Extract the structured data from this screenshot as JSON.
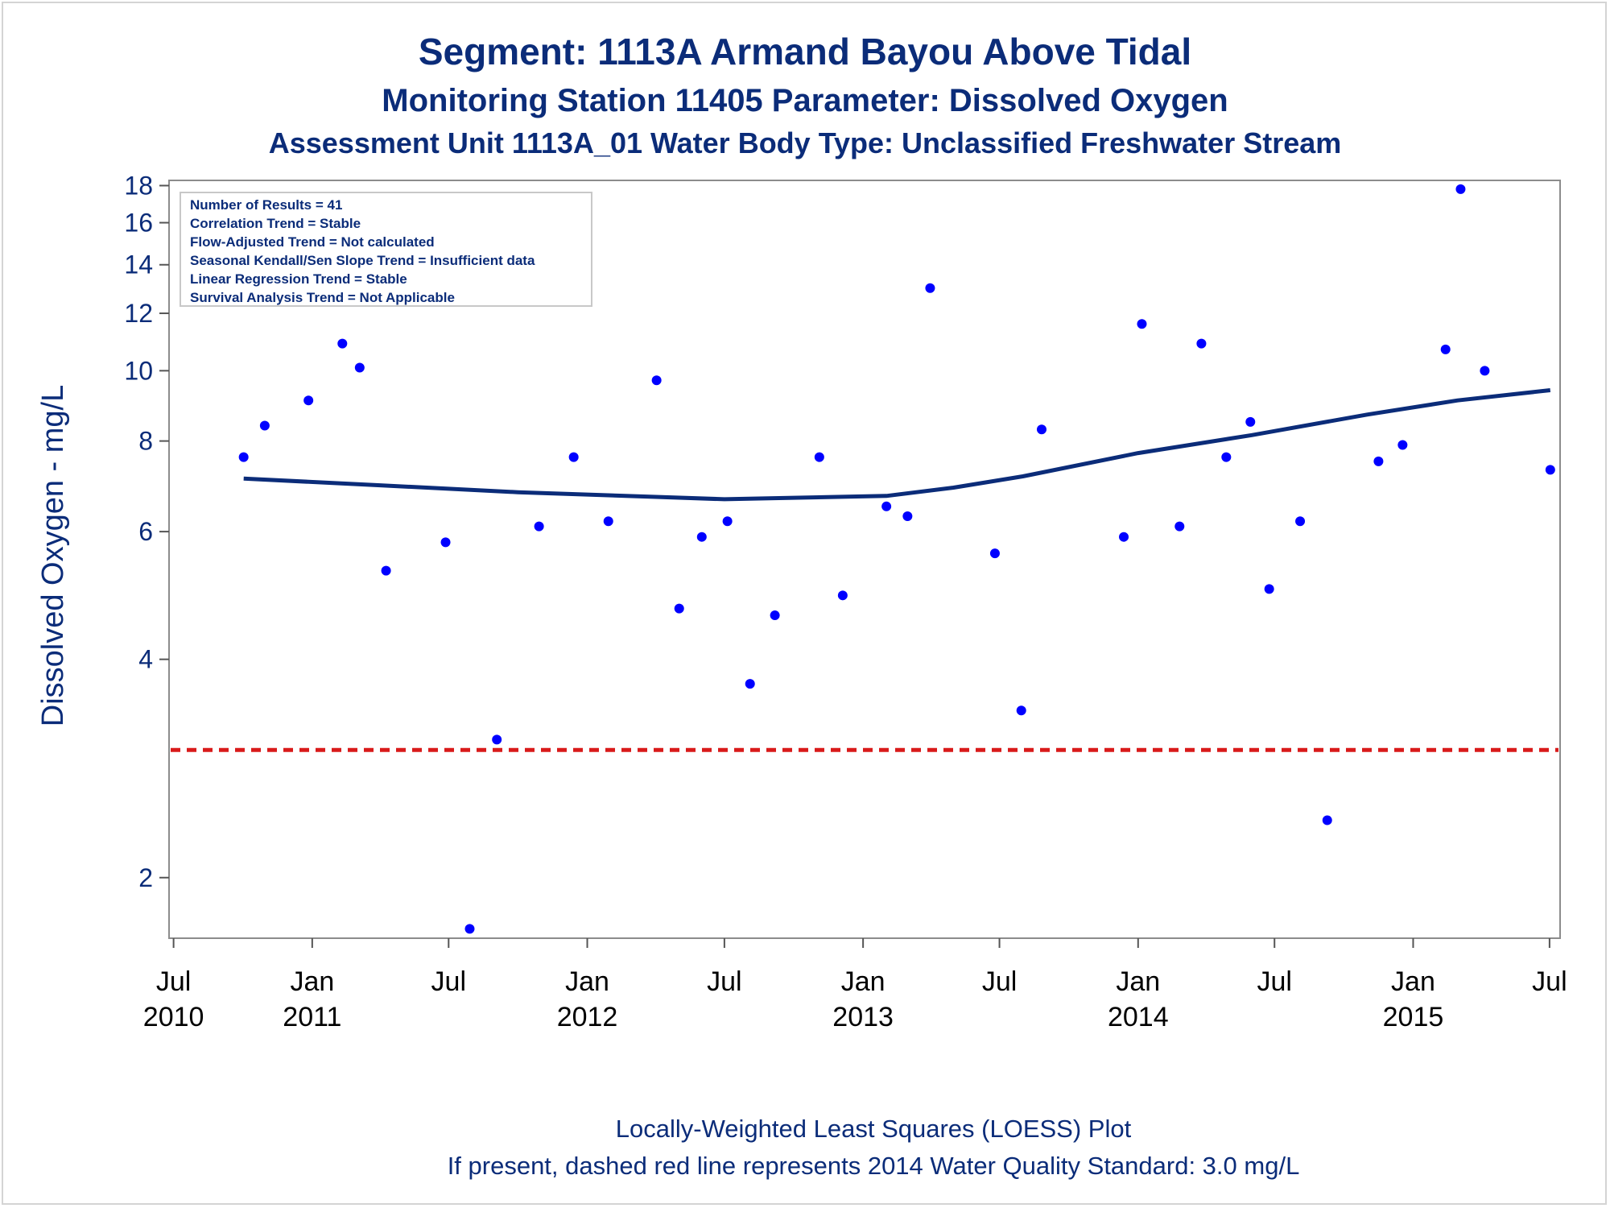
{
  "chart_data": {
    "type": "scatter",
    "title": "Segment: 1113A  Armand Bayou Above Tidal",
    "subtitle": "Monitoring Station 11405 Parameter: Dissolved Oxygen",
    "subtitle2": "Assessment Unit 1113A_01   Water Body Type: Unclassified Freshwater Stream",
    "ylabel": "Dissolved Oxygen - mg/L",
    "yscale": "log",
    "ylim": [
      1.65,
      18.3
    ],
    "xlim": [
      "2010-06-25",
      "2015-07-15"
    ],
    "yticks": [
      2,
      4,
      6,
      8,
      10,
      12,
      14,
      16,
      18
    ],
    "xticks": [
      {
        "date": "2010-07-01",
        "line1": "Jul",
        "line2": "2010"
      },
      {
        "date": "2011-01-01",
        "line1": "Jan",
        "line2": "2011"
      },
      {
        "date": "2011-07-01",
        "line1": "Jul",
        "line2": ""
      },
      {
        "date": "2012-01-01",
        "line1": "Jan",
        "line2": "2012"
      },
      {
        "date": "2012-07-01",
        "line1": "Jul",
        "line2": ""
      },
      {
        "date": "2013-01-01",
        "line1": "Jan",
        "line2": "2013"
      },
      {
        "date": "2013-07-01",
        "line1": "Jul",
        "line2": ""
      },
      {
        "date": "2014-01-01",
        "line1": "Jan",
        "line2": "2014"
      },
      {
        "date": "2014-07-01",
        "line1": "Jul",
        "line2": ""
      },
      {
        "date": "2015-01-01",
        "line1": "Jan",
        "line2": "2015"
      },
      {
        "date": "2015-07-01",
        "line1": "Jul",
        "line2": ""
      }
    ],
    "points": [
      {
        "x": "2010-10-02",
        "y": 7.6
      },
      {
        "x": "2010-10-30",
        "y": 8.4
      },
      {
        "x": "2010-12-27",
        "y": 9.1
      },
      {
        "x": "2011-02-10",
        "y": 10.9
      },
      {
        "x": "2011-03-05",
        "y": 10.1
      },
      {
        "x": "2011-04-09",
        "y": 5.3
      },
      {
        "x": "2011-06-27",
        "y": 5.8
      },
      {
        "x": "2011-07-29",
        "y": 1.7
      },
      {
        "x": "2011-09-03",
        "y": 3.1
      },
      {
        "x": "2011-10-29",
        "y": 6.1
      },
      {
        "x": "2011-12-14",
        "y": 7.6
      },
      {
        "x": "2012-01-29",
        "y": 6.2
      },
      {
        "x": "2012-04-02",
        "y": 9.7
      },
      {
        "x": "2012-05-02",
        "y": 4.7
      },
      {
        "x": "2012-06-01",
        "y": 5.9
      },
      {
        "x": "2012-07-05",
        "y": 6.2
      },
      {
        "x": "2012-08-04",
        "y": 3.7
      },
      {
        "x": "2012-09-06",
        "y": 4.6
      },
      {
        "x": "2012-11-04",
        "y": 7.6
      },
      {
        "x": "2012-12-05",
        "y": 4.9
      },
      {
        "x": "2013-02-01",
        "y": 6.5
      },
      {
        "x": "2013-03-01",
        "y": 6.3
      },
      {
        "x": "2013-03-31",
        "y": 13.0
      },
      {
        "x": "2013-06-25",
        "y": 5.6
      },
      {
        "x": "2013-07-30",
        "y": 3.4
      },
      {
        "x": "2013-08-26",
        "y": 8.3
      },
      {
        "x": "2013-12-13",
        "y": 5.9
      },
      {
        "x": "2014-01-06",
        "y": 11.6
      },
      {
        "x": "2014-02-25",
        "y": 6.1
      },
      {
        "x": "2014-03-26",
        "y": 10.9
      },
      {
        "x": "2014-04-28",
        "y": 7.6
      },
      {
        "x": "2014-05-30",
        "y": 8.5
      },
      {
        "x": "2014-06-24",
        "y": 5.0
      },
      {
        "x": "2014-08-04",
        "y": 6.2
      },
      {
        "x": "2014-09-09",
        "y": 2.4
      },
      {
        "x": "2014-11-16",
        "y": 7.5
      },
      {
        "x": "2014-12-18",
        "y": 7.9
      },
      {
        "x": "2015-02-13",
        "y": 10.7
      },
      {
        "x": "2015-03-05",
        "y": 17.8
      },
      {
        "x": "2015-04-06",
        "y": 10.0
      },
      {
        "x": "2015-07-02",
        "y": 7.3
      }
    ],
    "loess": [
      {
        "x": "2010-10-02",
        "y": 7.1
      },
      {
        "x": "2011-04-01",
        "y": 6.95
      },
      {
        "x": "2011-10-01",
        "y": 6.8
      },
      {
        "x": "2012-04-01",
        "y": 6.7
      },
      {
        "x": "2012-07-01",
        "y": 6.65
      },
      {
        "x": "2012-10-01",
        "y": 6.68
      },
      {
        "x": "2013-02-01",
        "y": 6.72
      },
      {
        "x": "2013-05-01",
        "y": 6.9
      },
      {
        "x": "2013-08-01",
        "y": 7.15
      },
      {
        "x": "2014-01-01",
        "y": 7.7
      },
      {
        "x": "2014-06-01",
        "y": 8.15
      },
      {
        "x": "2014-11-01",
        "y": 8.7
      },
      {
        "x": "2015-03-01",
        "y": 9.1
      },
      {
        "x": "2015-07-02",
        "y": 9.4
      }
    ],
    "standard_line": {
      "y": 3.0,
      "color": "#d91a1a",
      "style": "dashed"
    },
    "point_color": "#0000ff",
    "line_color": "#0b2c79",
    "text_color": "#0b2c79",
    "grid": false,
    "legend": "none"
  },
  "stats_box": {
    "lines": [
      "Number of Results = 41",
      "Correlation Trend = Stable",
      "Flow-Adjusted Trend = Not calculated",
      "Seasonal Kendall/Sen Slope Trend = Insufficient data",
      "Linear Regression Trend = Stable",
      "Survival Analysis Trend = Not Applicable"
    ]
  },
  "footnotes": {
    "line1": "Locally-Weighted Least Squares (LOESS) Plot",
    "line2": "If present, dashed red line represents 2014 Water Quality Standard: 3.0 mg/L"
  }
}
